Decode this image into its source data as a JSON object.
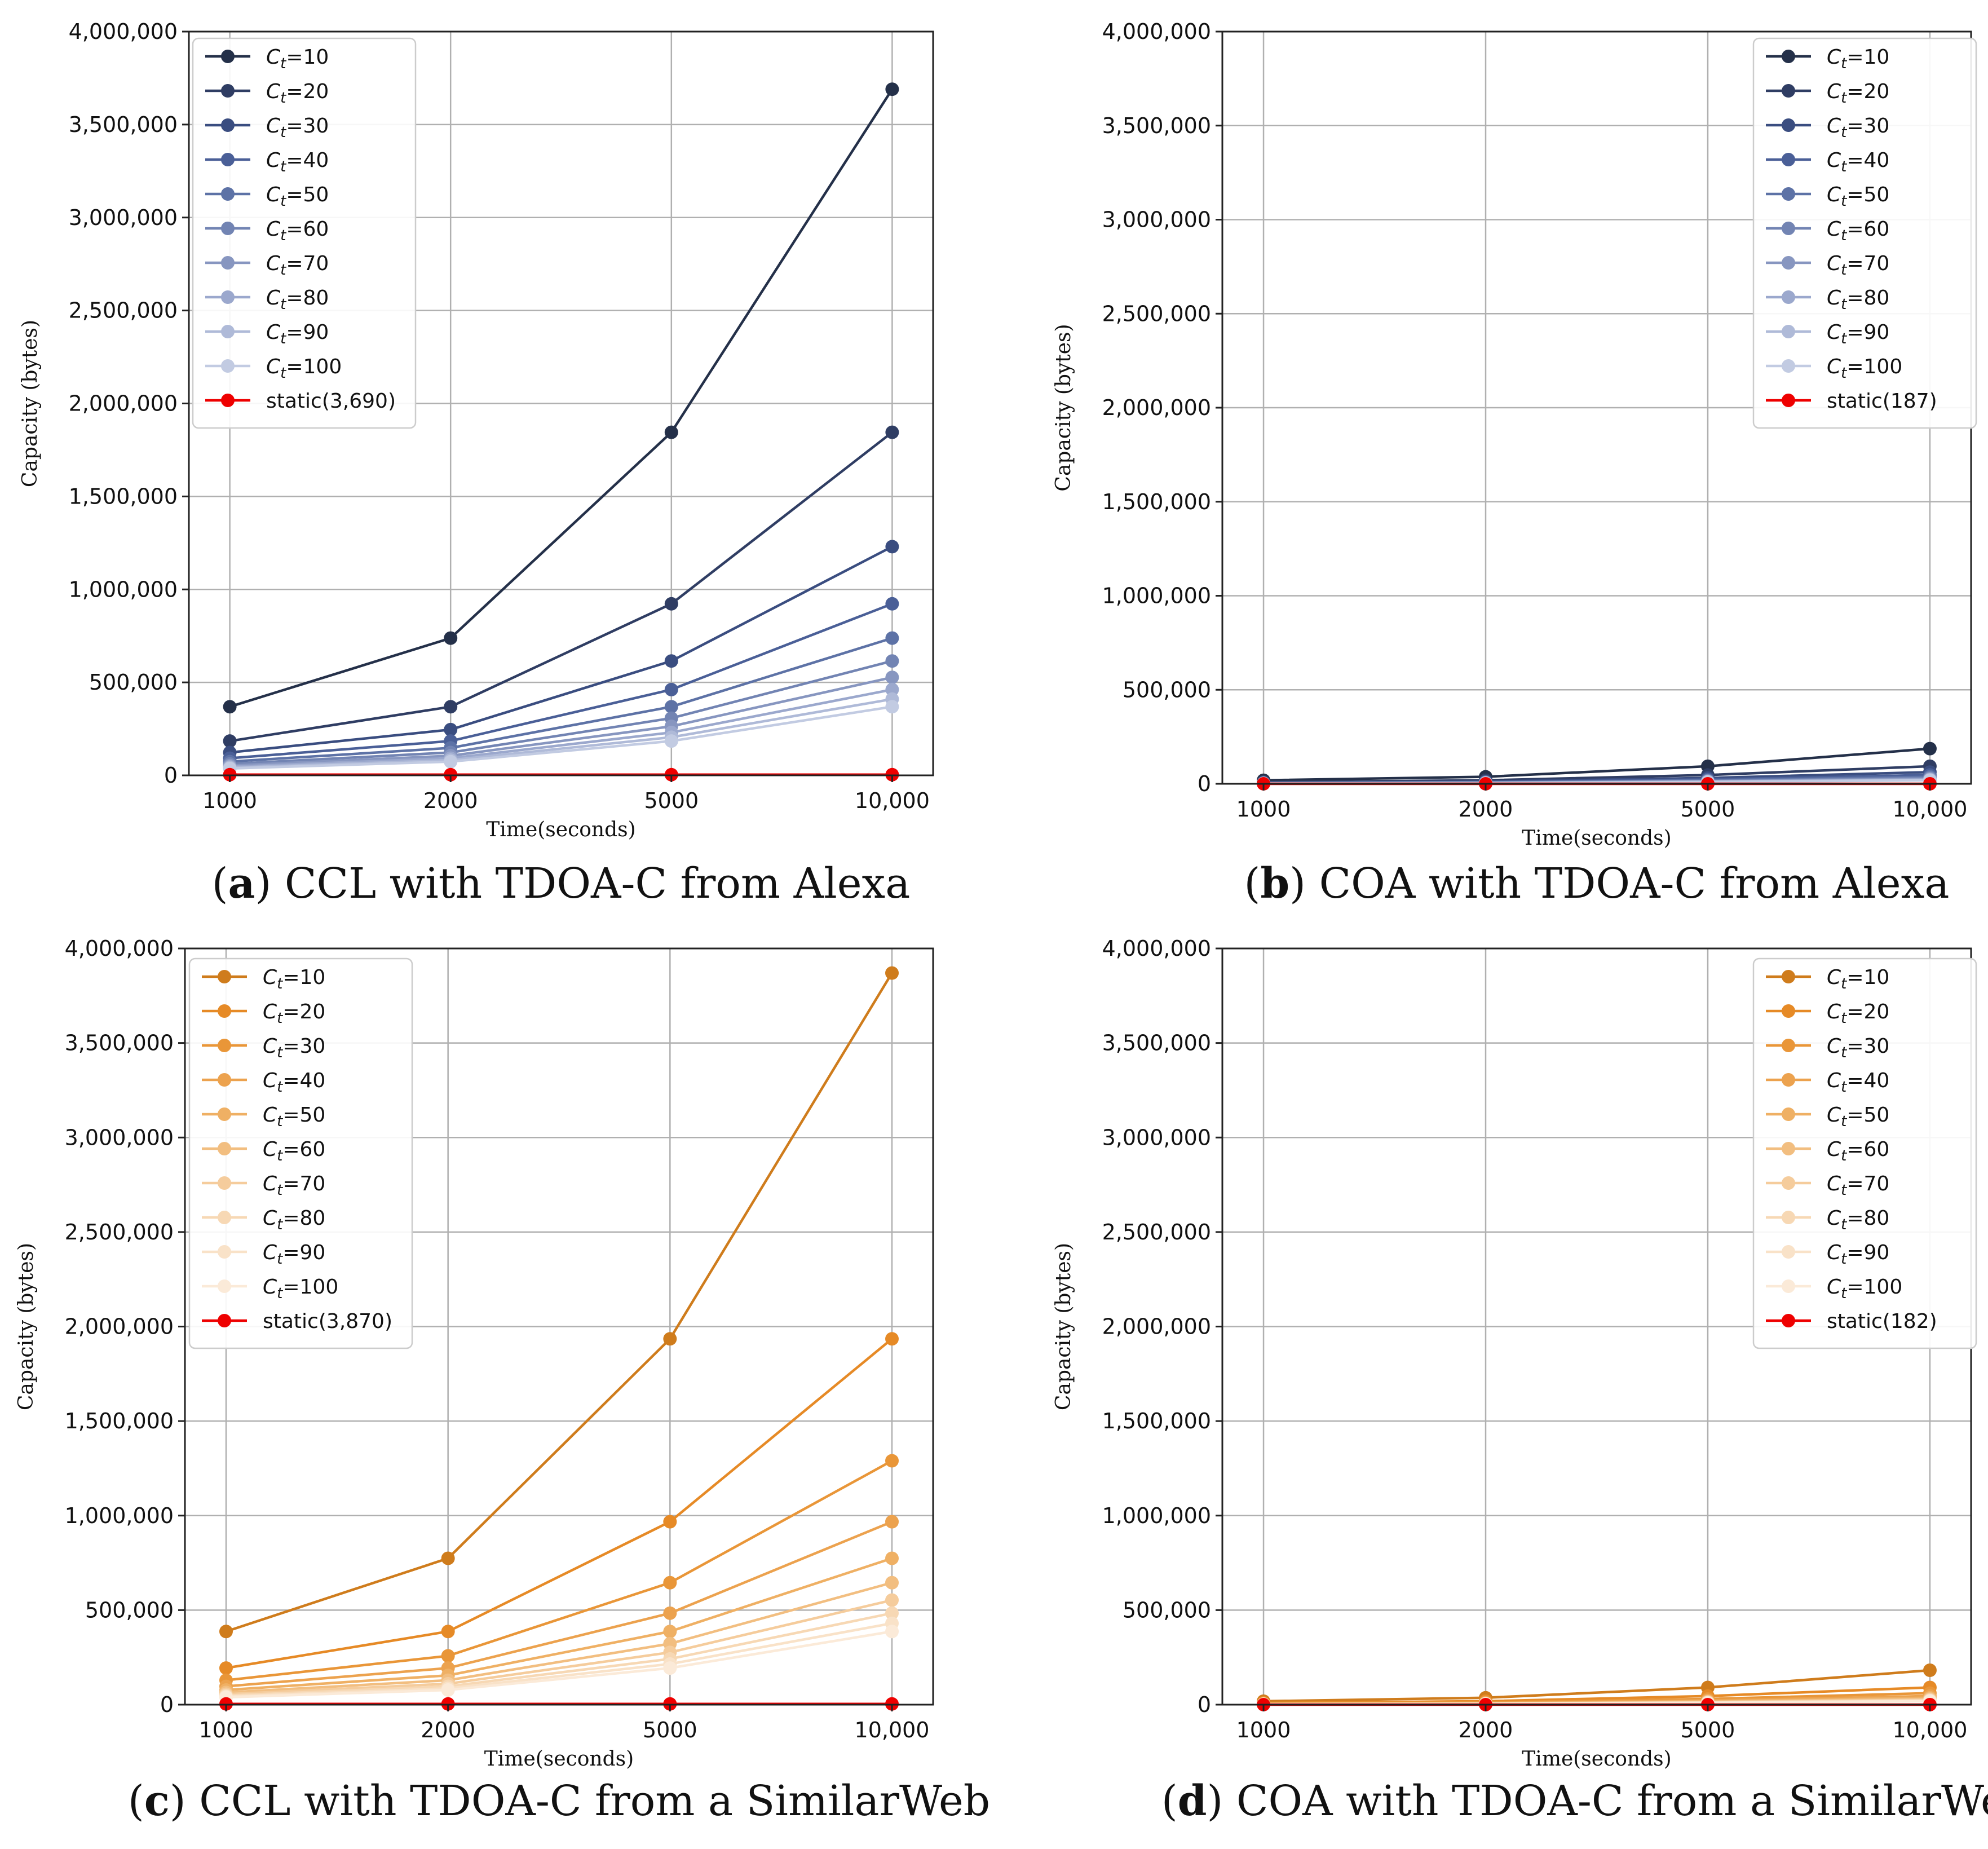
{
  "chart_data": [
    {
      "id": "a",
      "type": "line",
      "caption_letter": "a",
      "caption_text": "CCL with TDOA-C from Alexa",
      "xlabel": "Time(seconds)",
      "ylabel": "Capacity (bytes)",
      "categories": [
        "1000",
        "2000",
        "5000",
        "10,000"
      ],
      "ylim": [
        0,
        4000000
      ],
      "yticks": [
        "0",
        "500,000",
        "1,000,000",
        "1,500,000",
        "2,000,000",
        "2,500,000",
        "3,000,000",
        "3,500,000",
        "4,000,000"
      ],
      "legend_position": "upper-left",
      "grid": true,
      "series": [
        {
          "name": "C_t=10",
          "legend_sub": "t",
          "legend_value": "=10",
          "color": "#243049",
          "values": [
            369000,
            738000,
            1845000,
            3690000
          ]
        },
        {
          "name": "C_t=20",
          "legend_sub": "t",
          "legend_value": "=20",
          "color": "#2f3d63",
          "values": [
            184500,
            369000,
            922500,
            1845000
          ]
        },
        {
          "name": "C_t=30",
          "legend_sub": "t",
          "legend_value": "=30",
          "color": "#3a4d80",
          "values": [
            123000,
            246000,
            615000,
            1230000
          ]
        },
        {
          "name": "C_t=40",
          "legend_sub": "t",
          "legend_value": "=40",
          "color": "#4a5f97",
          "values": [
            92250,
            184500,
            461250,
            922500
          ]
        },
        {
          "name": "C_t=50",
          "legend_sub": "t",
          "legend_value": "=50",
          "color": "#5d72a6",
          "values": [
            73800,
            147600,
            369000,
            738000
          ]
        },
        {
          "name": "C_t=60",
          "legend_sub": "t",
          "legend_value": "=60",
          "color": "#7284b3",
          "values": [
            61500,
            123000,
            307500,
            615000
          ]
        },
        {
          "name": "C_t=70",
          "legend_sub": "t",
          "legend_value": "=70",
          "color": "#8796c0",
          "values": [
            52700,
            105400,
            263600,
            527100
          ]
        },
        {
          "name": "C_t=80",
          "legend_sub": "t",
          "legend_value": "=80",
          "color": "#9ba8cd",
          "values": [
            46100,
            92300,
            230600,
            461300
          ]
        },
        {
          "name": "C_t=90",
          "legend_sub": "t",
          "legend_value": "=90",
          "color": "#afbad8",
          "values": [
            41000,
            82000,
            205000,
            410000
          ]
        },
        {
          "name": "C_t=100",
          "legend_sub": "t",
          "legend_value": "=100",
          "color": "#c2cbe2",
          "values": [
            36900,
            73800,
            184500,
            369000
          ]
        },
        {
          "name": "static(3,690)",
          "legend_sub": "",
          "legend_value": "static(3,690)",
          "color": "#ee0000",
          "values": [
            3690,
            3690,
            3690,
            3690
          ]
        }
      ]
    },
    {
      "id": "b",
      "type": "line",
      "caption_letter": "b",
      "caption_text": "COA with TDOA-C from Alexa",
      "xlabel": "Time(seconds)",
      "ylabel": "Capacity (bytes)",
      "categories": [
        "1000",
        "2000",
        "5000",
        "10,000"
      ],
      "ylim": [
        0,
        4000000
      ],
      "yticks": [
        "0",
        "500,000",
        "1,000,000",
        "1,500,000",
        "2,000,000",
        "2,500,000",
        "3,000,000",
        "3,500,000",
        "4,000,000"
      ],
      "legend_position": "upper-right",
      "grid": true,
      "series": [
        {
          "name": "C_t=10",
          "legend_sub": "t",
          "legend_value": "=10",
          "color": "#243049",
          "values": [
            18700,
            37400,
            93500,
            187000
          ]
        },
        {
          "name": "C_t=20",
          "legend_sub": "t",
          "legend_value": "=20",
          "color": "#2f3d63",
          "values": [
            9350,
            18700,
            46750,
            93500
          ]
        },
        {
          "name": "C_t=30",
          "legend_sub": "t",
          "legend_value": "=30",
          "color": "#3a4d80",
          "values": [
            6230,
            12470,
            31170,
            62330
          ]
        },
        {
          "name": "C_t=40",
          "legend_sub": "t",
          "legend_value": "=40",
          "color": "#4a5f97",
          "values": [
            4680,
            9350,
            23380,
            46750
          ]
        },
        {
          "name": "C_t=50",
          "legend_sub": "t",
          "legend_value": "=50",
          "color": "#5d72a6",
          "values": [
            3740,
            7480,
            18700,
            37400
          ]
        },
        {
          "name": "C_t=60",
          "legend_sub": "t",
          "legend_value": "=60",
          "color": "#7284b3",
          "values": [
            3120,
            6230,
            15580,
            31170
          ]
        },
        {
          "name": "C_t=70",
          "legend_sub": "t",
          "legend_value": "=70",
          "color": "#8796c0",
          "values": [
            2670,
            5340,
            13360,
            26710
          ]
        },
        {
          "name": "C_t=80",
          "legend_sub": "t",
          "legend_value": "=80",
          "color": "#9ba8cd",
          "values": [
            2340,
            4680,
            11690,
            23380
          ]
        },
        {
          "name": "C_t=90",
          "legend_sub": "t",
          "legend_value": "=90",
          "color": "#afbad8",
          "values": [
            2080,
            4160,
            10390,
            20780
          ]
        },
        {
          "name": "C_t=100",
          "legend_sub": "t",
          "legend_value": "=100",
          "color": "#c2cbe2",
          "values": [
            1870,
            3740,
            9350,
            18700
          ]
        },
        {
          "name": "static(187)",
          "legend_sub": "",
          "legend_value": "static(187)",
          "color": "#ee0000",
          "values": [
            187,
            187,
            187,
            187
          ]
        }
      ]
    },
    {
      "id": "c",
      "type": "line",
      "caption_letter": "c",
      "caption_text": "CCL with TDOA-C from a SimilarWeb",
      "xlabel": "Time(seconds)",
      "ylabel": "Capacity (bytes)",
      "categories": [
        "1000",
        "2000",
        "5000",
        "10,000"
      ],
      "ylim": [
        0,
        4000000
      ],
      "yticks": [
        "0",
        "500,000",
        "1,000,000",
        "1,500,000",
        "2,000,000",
        "2,500,000",
        "3,000,000",
        "3,500,000",
        "4,000,000"
      ],
      "legend_position": "upper-left",
      "grid": true,
      "series": [
        {
          "name": "C_t=10",
          "legend_sub": "t",
          "legend_value": "=10",
          "color": "#cf7c1c",
          "values": [
            387000,
            774000,
            1935000,
            3870000
          ]
        },
        {
          "name": "C_t=20",
          "legend_sub": "t",
          "legend_value": "=20",
          "color": "#e68a26",
          "values": [
            193500,
            387000,
            967500,
            1935000
          ]
        },
        {
          "name": "C_t=30",
          "legend_sub": "t",
          "legend_value": "=30",
          "color": "#e99638",
          "values": [
            129000,
            258000,
            645000,
            1290000
          ]
        },
        {
          "name": "C_t=40",
          "legend_sub": "t",
          "legend_value": "=40",
          "color": "#eca24e",
          "values": [
            96750,
            193500,
            483750,
            967500
          ]
        },
        {
          "name": "C_t=50",
          "legend_sub": "t",
          "legend_value": "=50",
          "color": "#efb064",
          "values": [
            77400,
            154800,
            387000,
            774000
          ]
        },
        {
          "name": "C_t=60",
          "legend_sub": "t",
          "legend_value": "=60",
          "color": "#f2be80",
          "values": [
            64500,
            129000,
            322500,
            645000
          ]
        },
        {
          "name": "C_t=70",
          "legend_sub": "t",
          "legend_value": "=70",
          "color": "#f5cc9c",
          "values": [
            55300,
            110600,
            276400,
            552900
          ]
        },
        {
          "name": "C_t=80",
          "legend_sub": "t",
          "legend_value": "=80",
          "color": "#f7d8b4",
          "values": [
            48400,
            96800,
            241900,
            483800
          ]
        },
        {
          "name": "C_t=90",
          "legend_sub": "t",
          "legend_value": "=90",
          "color": "#f9e2c8",
          "values": [
            43000,
            86000,
            215000,
            430000
          ]
        },
        {
          "name": "C_t=100",
          "legend_sub": "t",
          "legend_value": "=100",
          "color": "#fbead8",
          "values": [
            38700,
            77400,
            193500,
            387000
          ]
        },
        {
          "name": "static(3,870)",
          "legend_sub": "",
          "legend_value": "static(3,870)",
          "color": "#ee0000",
          "values": [
            3870,
            3870,
            3870,
            3870
          ]
        }
      ]
    },
    {
      "id": "d",
      "type": "line",
      "caption_letter": "d",
      "caption_text": "COA with TDOA-C from a SimilarWeb",
      "xlabel": "Time(seconds)",
      "ylabel": "Capacity (bytes)",
      "categories": [
        "1000",
        "2000",
        "5000",
        "10,000"
      ],
      "ylim": [
        0,
        4000000
      ],
      "yticks": [
        "0",
        "500,000",
        "1,000,000",
        "1,500,000",
        "2,000,000",
        "2,500,000",
        "3,000,000",
        "3,500,000",
        "4,000,000"
      ],
      "legend_position": "upper-right",
      "grid": true,
      "series": [
        {
          "name": "C_t=10",
          "legend_sub": "t",
          "legend_value": "=10",
          "color": "#cf7c1c",
          "values": [
            18200,
            36400,
            91000,
            182000
          ]
        },
        {
          "name": "C_t=20",
          "legend_sub": "t",
          "legend_value": "=20",
          "color": "#e68a26",
          "values": [
            9100,
            18200,
            45500,
            91000
          ]
        },
        {
          "name": "C_t=30",
          "legend_sub": "t",
          "legend_value": "=30",
          "color": "#e99638",
          "values": [
            6070,
            12130,
            30330,
            60670
          ]
        },
        {
          "name": "C_t=40",
          "legend_sub": "t",
          "legend_value": "=40",
          "color": "#eca24e",
          "values": [
            4550,
            9100,
            22750,
            45500
          ]
        },
        {
          "name": "C_t=50",
          "legend_sub": "t",
          "legend_value": "=50",
          "color": "#efb064",
          "values": [
            3640,
            7280,
            18200,
            36400
          ]
        },
        {
          "name": "C_t=60",
          "legend_sub": "t",
          "legend_value": "=60",
          "color": "#f2be80",
          "values": [
            3030,
            6070,
            15170,
            30330
          ]
        },
        {
          "name": "C_t=70",
          "legend_sub": "t",
          "legend_value": "=70",
          "color": "#f5cc9c",
          "values": [
            2600,
            5200,
            13000,
            26000
          ]
        },
        {
          "name": "C_t=80",
          "legend_sub": "t",
          "legend_value": "=80",
          "color": "#f7d8b4",
          "values": [
            2280,
            4550,
            11380,
            22750
          ]
        },
        {
          "name": "C_t=90",
          "legend_sub": "t",
          "legend_value": "=90",
          "color": "#f9e2c8",
          "values": [
            2020,
            4040,
            10110,
            20220
          ]
        },
        {
          "name": "C_t=100",
          "legend_sub": "t",
          "legend_value": "=100",
          "color": "#fbead8",
          "values": [
            1820,
            3640,
            9100,
            18200
          ]
        },
        {
          "name": "static(182)",
          "legend_sub": "",
          "legend_value": "static(182)",
          "color": "#ee0000",
          "values": [
            182,
            182,
            182,
            182
          ]
        }
      ]
    }
  ]
}
